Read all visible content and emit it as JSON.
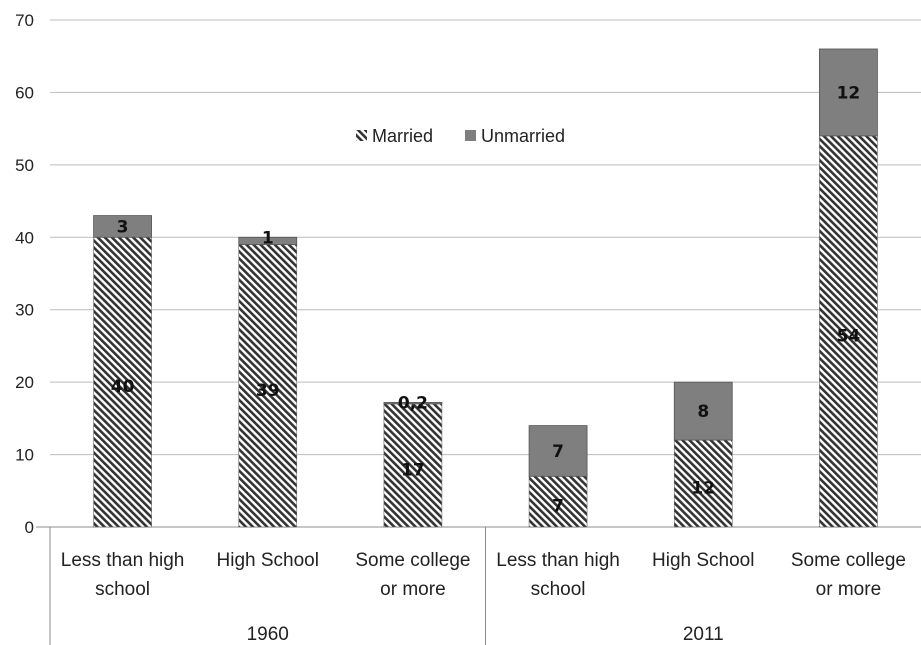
{
  "chart_data": {
    "type": "bar",
    "stacked": true,
    "groups": [
      {
        "label": "1960",
        "categories": [
          "Less than high school",
          "High School",
          "Some college or more"
        ]
      },
      {
        "label": "2011",
        "categories": [
          "Less than high school",
          "High School",
          "Some college or more"
        ]
      }
    ],
    "category_labels": [
      [
        "Less than high",
        "school"
      ],
      [
        "High School"
      ],
      [
        "Some college",
        "or more"
      ],
      [
        "Less than high",
        "school"
      ],
      [
        "High School"
      ],
      [
        "Some college",
        "or more"
      ]
    ],
    "series": [
      {
        "name": "Married",
        "values": [
          40,
          39,
          17,
          7,
          12,
          54
        ],
        "labels": [
          "40",
          "39",
          "17",
          "7",
          "12",
          "54"
        ],
        "pattern": "diagonal-hatch",
        "color": "#333333"
      },
      {
        "name": "Unmarried",
        "values": [
          3,
          1,
          0.2,
          7,
          8,
          12
        ],
        "labels": [
          "3",
          "1",
          "0,2",
          "7",
          "8",
          "12"
        ],
        "color": "#7f7f7f"
      }
    ],
    "y_ticks": [
      "0",
      "10",
      "20",
      "30",
      "40",
      "50",
      "60",
      "70"
    ],
    "ylim": [
      0,
      70
    ],
    "grid": true,
    "legend": "top-center",
    "title": "",
    "xlabel": "",
    "ylabel": ""
  }
}
